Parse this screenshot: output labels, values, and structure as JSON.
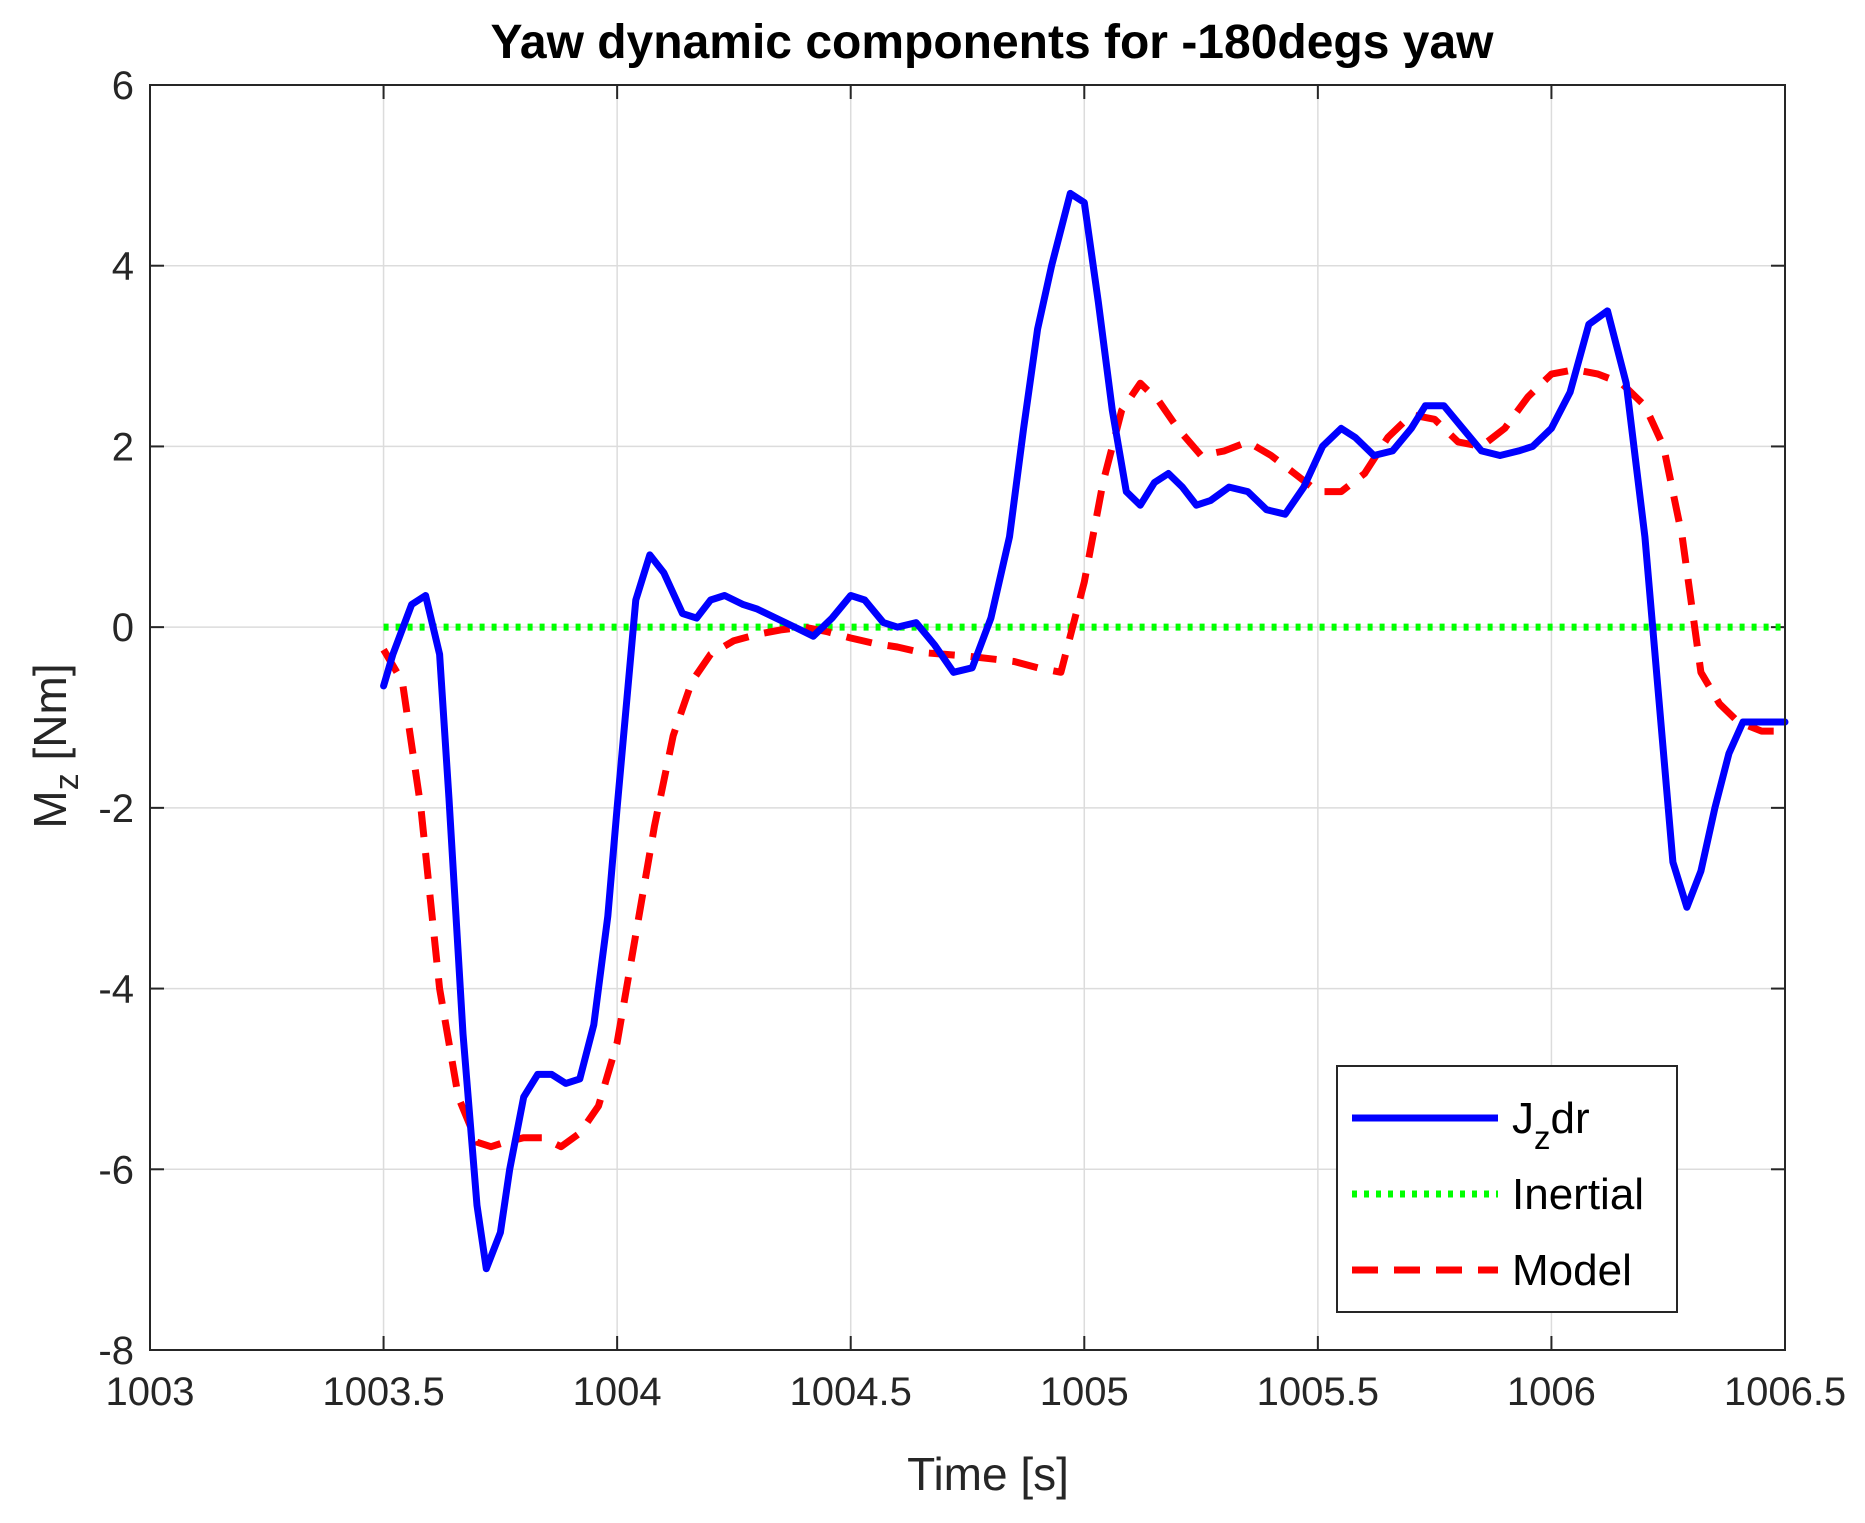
{
  "chart_data": {
    "type": "line",
    "title": "Yaw dynamic components for -180degs yaw",
    "xlabel": "Time [s]",
    "ylabel_main": "M",
    "ylabel_sub": "z",
    "ylabel_unit": " [Nm]",
    "xlim": [
      1003,
      1006.5
    ],
    "ylim": [
      -8,
      6
    ],
    "xticks": [
      1003,
      1003.5,
      1004,
      1004.5,
      1005,
      1005.5,
      1006,
      1006.5
    ],
    "yticks": [
      -8,
      -6,
      -4,
      -2,
      0,
      2,
      4,
      6
    ],
    "grid": true,
    "legend": {
      "placement": "bottom-right"
    },
    "series": [
      {
        "name": "J_z dr",
        "legend_main": "J",
        "legend_sub": "z",
        "legend_tail": "dr",
        "color": "#0000ff",
        "style": "solid",
        "x": [
          1003.5,
          1003.52,
          1003.56,
          1003.59,
          1003.62,
          1003.64,
          1003.67,
          1003.7,
          1003.72,
          1003.75,
          1003.77,
          1003.8,
          1003.83,
          1003.86,
          1003.89,
          1003.92,
          1003.95,
          1003.98,
          1004.0,
          1004.04,
          1004.07,
          1004.1,
          1004.14,
          1004.17,
          1004.2,
          1004.23,
          1004.27,
          1004.3,
          1004.34,
          1004.38,
          1004.42,
          1004.46,
          1004.5,
          1004.53,
          1004.57,
          1004.6,
          1004.64,
          1004.68,
          1004.72,
          1004.76,
          1004.8,
          1004.84,
          1004.87,
          1004.9,
          1004.93,
          1004.97,
          1005.0,
          1005.03,
          1005.06,
          1005.09,
          1005.12,
          1005.15,
          1005.18,
          1005.21,
          1005.24,
          1005.27,
          1005.31,
          1005.35,
          1005.39,
          1005.43,
          1005.47,
          1005.51,
          1005.55,
          1005.58,
          1005.62,
          1005.66,
          1005.7,
          1005.73,
          1005.77,
          1005.81,
          1005.85,
          1005.89,
          1005.93,
          1005.96,
          1006.0,
          1006.04,
          1006.08,
          1006.12,
          1006.16,
          1006.2,
          1006.23,
          1006.26,
          1006.29,
          1006.32,
          1006.35,
          1006.38,
          1006.41,
          1006.44,
          1006.47,
          1006.5
        ],
        "y": [
          -0.65,
          -0.3,
          0.25,
          0.35,
          -0.3,
          -1.9,
          -4.5,
          -6.4,
          -7.1,
          -6.7,
          -6.0,
          -5.2,
          -4.95,
          -4.95,
          -5.05,
          -5.0,
          -4.4,
          -3.2,
          -2.0,
          0.3,
          0.8,
          0.6,
          0.15,
          0.1,
          0.3,
          0.35,
          0.25,
          0.2,
          0.1,
          0.0,
          -0.1,
          0.1,
          0.35,
          0.3,
          0.05,
          0.0,
          0.05,
          -0.2,
          -0.5,
          -0.45,
          0.1,
          1.0,
          2.2,
          3.3,
          4.0,
          4.8,
          4.7,
          3.6,
          2.4,
          1.5,
          1.35,
          1.6,
          1.7,
          1.55,
          1.35,
          1.4,
          1.55,
          1.5,
          1.3,
          1.25,
          1.55,
          2.0,
          2.2,
          2.1,
          1.9,
          1.95,
          2.2,
          2.45,
          2.45,
          2.2,
          1.95,
          1.9,
          1.95,
          2.0,
          2.2,
          2.6,
          3.35,
          3.5,
          2.7,
          1.0,
          -0.8,
          -2.6,
          -3.1,
          -2.7,
          -2.0,
          -1.4,
          -1.05,
          -1.05,
          -1.05,
          -1.05
        ]
      },
      {
        "name": "Inertial",
        "legend_main": "Inertial",
        "color": "#00ff00",
        "style": "dotted",
        "x": [
          1003.5,
          1006.5
        ],
        "y": [
          0,
          0
        ]
      },
      {
        "name": "Model",
        "legend_main": "Model",
        "color": "#ff0000",
        "style": "dashed",
        "x": [
          1003.5,
          1003.54,
          1003.58,
          1003.62,
          1003.66,
          1003.7,
          1003.73,
          1003.76,
          1003.8,
          1003.84,
          1003.88,
          1003.92,
          1003.96,
          1004.0,
          1004.04,
          1004.08,
          1004.12,
          1004.16,
          1004.2,
          1004.25,
          1004.3,
          1004.35,
          1004.4,
          1004.45,
          1004.5,
          1004.55,
          1004.6,
          1004.65,
          1004.7,
          1004.75,
          1004.8,
          1004.85,
          1004.9,
          1004.95,
          1005.0,
          1005.04,
          1005.08,
          1005.12,
          1005.16,
          1005.2,
          1005.25,
          1005.3,
          1005.35,
          1005.4,
          1005.45,
          1005.5,
          1005.55,
          1005.6,
          1005.65,
          1005.7,
          1005.75,
          1005.8,
          1005.85,
          1005.9,
          1005.95,
          1006.0,
          1006.05,
          1006.1,
          1006.15,
          1006.2,
          1006.24,
          1006.28,
          1006.32,
          1006.36,
          1006.4,
          1006.45,
          1006.5
        ],
        "y": [
          -0.25,
          -0.6,
          -2.0,
          -4.0,
          -5.2,
          -5.7,
          -5.75,
          -5.7,
          -5.65,
          -5.65,
          -5.75,
          -5.6,
          -5.3,
          -4.6,
          -3.4,
          -2.2,
          -1.2,
          -0.6,
          -0.3,
          -0.15,
          -0.08,
          -0.03,
          0.0,
          -0.05,
          -0.12,
          -0.18,
          -0.22,
          -0.28,
          -0.3,
          -0.32,
          -0.35,
          -0.38,
          -0.45,
          -0.5,
          0.5,
          1.6,
          2.4,
          2.7,
          2.5,
          2.2,
          1.9,
          1.95,
          2.05,
          1.9,
          1.7,
          1.5,
          1.5,
          1.7,
          2.1,
          2.35,
          2.3,
          2.05,
          2.0,
          2.2,
          2.55,
          2.8,
          2.85,
          2.8,
          2.7,
          2.45,
          2.0,
          1.0,
          -0.5,
          -0.85,
          -1.05,
          -1.15,
          -1.15
        ]
      }
    ]
  }
}
